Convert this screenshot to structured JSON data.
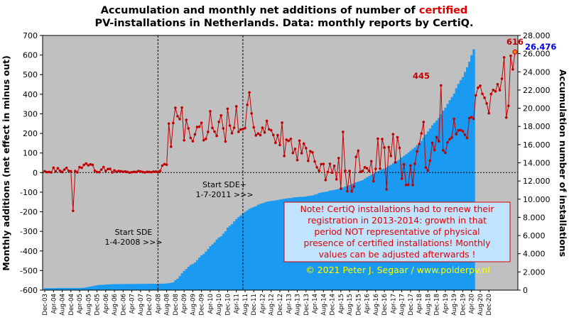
{
  "chart_data": {
    "type": "bar+line",
    "title_parts": [
      {
        "text": "Accumulation  and  monthly net additions of number of ",
        "highlight": false
      },
      {
        "text": "certified",
        "highlight": true
      }
    ],
    "title_line2": "PV-installations  in  Netherlands.  Data: monthly reports by CertiQ.",
    "left_axis": {
      "label": "Monthly additions  (net effect in minus out)",
      "ylim": [
        -600,
        700
      ],
      "ticks": [
        "-600",
        "-500",
        "-400",
        "-300",
        "-200",
        "-100",
        "0",
        "100",
        "200",
        "300",
        "400",
        "500",
        "600",
        "700"
      ]
    },
    "right_axis": {
      "label": "Accumulation  number  of  installations",
      "ylim": [
        0,
        28000
      ],
      "ticks": [
        "0",
        "2.000",
        "4.000",
        "6.000",
        "8.000",
        "10.000",
        "12.000",
        "14.000",
        "16.000",
        "18.000",
        "20.000",
        "22.000",
        "24.000",
        "26.000",
        "28.000"
      ]
    },
    "x_start": "2003-12",
    "x_tick_labels": [
      "Dec-03",
      "Apr-04",
      "Aug-04",
      "Dec-04",
      "Apr-05",
      "Aug-05",
      "Dec-05",
      "Apr-06",
      "Aug-06",
      "Dec-06",
      "Apr-07",
      "Aug-07",
      "Dec-07",
      "Apr-08",
      "Aug-08",
      "Dec-08",
      "Apr-09",
      "Aug-09",
      "Dec-09",
      "Apr-10",
      "Aug-10",
      "Dec-10",
      "Apr-11",
      "Aug-11",
      "Dec-11",
      "Apr-12",
      "Aug-12",
      "Dec-12",
      "Apr-13",
      "Aug-13",
      "Dec-13",
      "Apr-14",
      "Aug-14",
      "Dec-14",
      "Apr-15",
      "Aug-15",
      "Dec-15",
      "Apr-16",
      "Aug-16",
      "Dec-16",
      "Apr-17",
      "Aug-17",
      "Dec-17",
      "Apr-18",
      "Aug-18",
      "Dec-18",
      "Apr-19",
      "Aug-19",
      "Dec-19",
      "Apr-20",
      "Aug-20",
      "Dec-20"
    ],
    "series": [
      {
        "name": "Accumulation",
        "axis": "right",
        "color": "#1a9af0",
        "values": [
          210,
          212,
          214,
          217,
          220,
          225,
          229,
          233,
          236,
          239,
          241,
          244,
          246,
          230,
          232,
          236,
          238,
          242,
          256,
          298,
          345,
          391,
          444,
          488,
          534,
          571,
          583,
          585,
          614,
          627,
          639,
          648,
          654,
          660,
          663,
          666,
          670,
          673,
          674,
          675,
          677,
          678,
          681,
          684,
          687,
          689,
          690,
          693,
          695,
          697,
          700,
          702,
          705,
          707,
          707,
          718,
          730,
          759,
          804,
          848,
          1098,
          1250,
          1533,
          1854,
          2113,
          2312,
          2562,
          2780,
          2874,
          3034,
          3294,
          3583,
          3817,
          3978,
          4230,
          4513,
          4828,
          5022,
          5251,
          5562,
          5778,
          5917,
          6211,
          6474,
          6876,
          7073,
          7264,
          7557,
          7809,
          8031,
          8228,
          8414,
          8600,
          8775,
          8934,
          9051,
          9138,
          9228,
          9391,
          9486,
          9548,
          9642,
          9718,
          9762,
          9802,
          9840,
          9862,
          9909,
          9951,
          9996,
          10042,
          10075,
          10116,
          10116,
          10176,
          10212,
          10220,
          10248,
          10260,
          10268,
          10297,
          10349,
          10375,
          10410,
          10497,
          10554,
          10670,
          10725,
          10773,
          10811,
          10852,
          10945,
          10971,
          11025,
          11070,
          11121,
          11190,
          11285,
          11391,
          11455,
          11549,
          11664,
          11738,
          11862,
          11931,
          12008,
          12085,
          12256,
          12409,
          12546,
          12680,
          12811,
          12948,
          13086,
          13157,
          13286,
          13371,
          13500,
          13663,
          13769,
          13946,
          14100,
          14226,
          14363,
          14592,
          14757,
          14939,
          15111,
          15312,
          15500,
          15696,
          15936,
          16153,
          16403,
          16749,
          17110,
          17446,
          17769,
          18117,
          18389,
          18651,
          18938,
          19340,
          19733,
          20059,
          20480,
          20871,
          21228,
          21611,
          22199,
          22686,
          23081,
          23416,
          23982,
          24501,
          25110,
          25834,
          26476
        ]
      },
      {
        "name": "Monthly net additions",
        "axis": "left",
        "color": "#c00000",
        "values": [
          7,
          2,
          3,
          1,
          25,
          6,
          22,
          9,
          3,
          15,
          24,
          9,
          7,
          -195,
          8,
          1,
          28,
          24,
          39,
          46,
          37,
          42,
          39,
          9,
          3,
          2,
          15,
          28,
          8,
          18,
          19,
          1,
          11,
          4,
          8,
          7,
          4,
          6,
          3,
          0,
          2,
          4,
          3,
          8,
          6,
          3,
          1,
          4,
          3,
          2,
          5,
          5,
          2,
          8,
          36,
          43,
          40,
          250,
          132,
          253,
          331,
          288,
          273,
          332,
          165,
          269,
          226,
          177,
          160,
          195,
          233,
          234,
          254,
          165,
          172,
          208,
          313,
          228,
          209,
          187,
          259,
          292,
          226,
          159,
          326,
          240,
          201,
          229,
          338,
          208,
          220,
          222,
          227,
          346,
          409,
          302,
          231,
          190,
          199,
          191,
          229,
          205,
          264,
          221,
          216,
          192,
          152,
          191,
          141,
          255,
          85,
          168,
          162,
          172,
          100,
          121,
          64,
          163,
          99,
          148,
          125,
          60,
          109,
          103,
          57,
          27,
          9,
          43,
          44,
          -38,
          3,
          45,
          0,
          34,
          -34,
          74,
          -82,
          208,
          9,
          -95,
          8,
          -96,
          -71,
          80,
          112,
          4,
          8,
          27,
          22,
          8,
          58,
          -44,
          19,
          173,
          20,
          171,
          128,
          -86,
          130,
          85,
          196,
          52,
          180,
          126,
          -31,
          42,
          -63,
          -62,
          36,
          -63,
          45,
          108,
          146,
          200,
          258,
          26,
          10,
          61,
          152,
          115,
          181,
          160,
          445,
          113,
          101,
          154,
          170,
          179,
          274,
          196,
          216,
          217,
          211,
          193,
          177,
          278,
          283,
          275,
          394,
          433,
          443,
          402,
          382,
          353,
          303,
          401,
          422,
          415,
          451,
          421,
          479,
          588,
          281,
          341,
          596,
          527,
          616
        ]
      }
    ],
    "markers": [
      {
        "x_label": "Apr-08",
        "lines": [
          "Start SDE",
          "1-4-2008  >>>"
        ]
      },
      {
        "x_label": "Jul-11",
        "lines": [
          "Start SDE+",
          "1-7-2011  >>>"
        ]
      }
    ],
    "data_labels": [
      {
        "text": "445",
        "color": "#c00000"
      },
      {
        "text": "616",
        "color": "#c00000"
      },
      {
        "text": "26.476",
        "color": "#0000e0"
      }
    ],
    "note_lines": [
      "Note! CertiQ installations had to renew  their",
      "registration  in 2013-2014:  growth in that",
      "period  NOT representative of physical",
      "presence of certified installations!  Monthly",
      "values can be adjusted afterwards !"
    ],
    "credit": "©  2021  Peter  J.  Segaar  /  www.polderpv.nl",
    "plot_background": "#c0c0c0",
    "note_background": "#c0e4ff",
    "grid": false,
    "legend": "none"
  }
}
